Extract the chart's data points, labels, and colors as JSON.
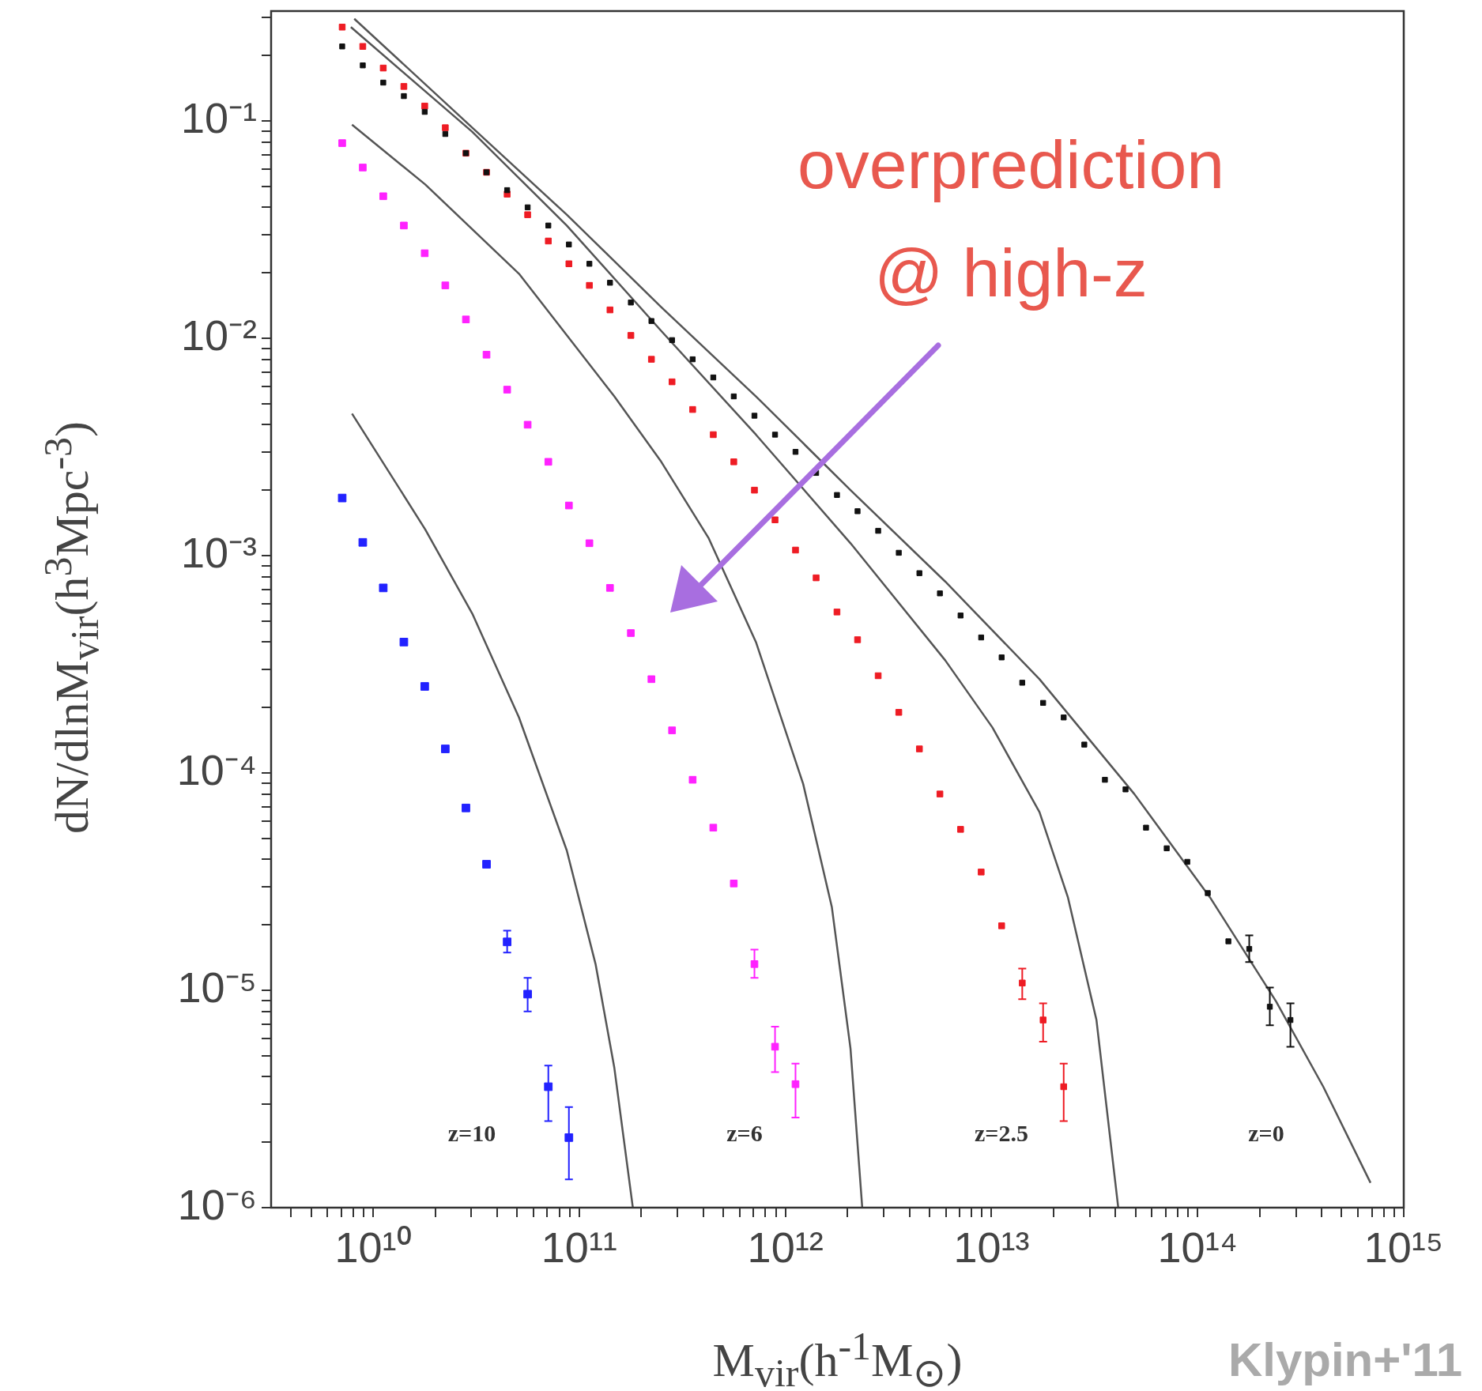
{
  "chart_data": {
    "type": "scatter",
    "xlabel": "M$_{vir}$(h$^{-1}$M$_{⊙}$)",
    "ylabel": "dN/dlnM$_{vir}$(h$^{3}$Mpc$^{-3}$)",
    "log": "xy",
    "marker": "square",
    "legend": false,
    "xlim": [
      3200000000.0,
      1000000000000000.0
    ],
    "ylim": [
      1e-06,
      0.32
    ],
    "xticks": [
      {
        "value": 4000000000.0,
        "label": null
      },
      {
        "value": 5000000000.0,
        "label": null
      },
      {
        "value": 6000000000.0,
        "label": null
      },
      {
        "value": 7000000000.0,
        "label": null
      },
      {
        "value": 8000000000.0,
        "label": null
      },
      {
        "value": 9000000000.0,
        "label": null
      },
      {
        "value": 10000000000.0,
        "label": "10¹⁰"
      },
      {
        "value": 20000000000.0,
        "label": null
      },
      {
        "value": 30000000000.0,
        "label": null
      },
      {
        "value": 40000000000.0,
        "label": null
      },
      {
        "value": 50000000000.0,
        "label": null
      },
      {
        "value": 60000000000.0,
        "label": null
      },
      {
        "value": 70000000000.0,
        "label": null
      },
      {
        "value": 80000000000.0,
        "label": null
      },
      {
        "value": 90000000000.0,
        "label": null
      },
      {
        "value": 100000000000.0,
        "label": "10¹¹"
      },
      {
        "value": 200000000000.0,
        "label": null
      },
      {
        "value": 300000000000.0,
        "label": null
      },
      {
        "value": 400000000000.0,
        "label": null
      },
      {
        "value": 500000000000.0,
        "label": null
      },
      {
        "value": 600000000000.0,
        "label": null
      },
      {
        "value": 700000000000.0,
        "label": null
      },
      {
        "value": 800000000000.0,
        "label": null
      },
      {
        "value": 900000000000.0,
        "label": null
      },
      {
        "value": 1000000000000.0,
        "label": "10¹²"
      },
      {
        "value": 2000000000000.0,
        "label": null
      },
      {
        "value": 3000000000000.0,
        "label": null
      },
      {
        "value": 4000000000000.0,
        "label": null
      },
      {
        "value": 5000000000000.0,
        "label": null
      },
      {
        "value": 6000000000000.0,
        "label": null
      },
      {
        "value": 7000000000000.0,
        "label": null
      },
      {
        "value": 8000000000000.0,
        "label": null
      },
      {
        "value": 9000000000000.0,
        "label": null
      },
      {
        "value": 10000000000000.0,
        "label": "10¹³"
      },
      {
        "value": 20000000000000.0,
        "label": null
      },
      {
        "value": 30000000000000.0,
        "label": null
      },
      {
        "value": 40000000000000.0,
        "label": null
      },
      {
        "value": 50000000000000.0,
        "label": null
      },
      {
        "value": 60000000000000.0,
        "label": null
      },
      {
        "value": 70000000000000.0,
        "label": null
      },
      {
        "value": 80000000000000.0,
        "label": null
      },
      {
        "value": 90000000000000.0,
        "label": null
      },
      {
        "value": 100000000000000.0,
        "label": "10¹⁴"
      },
      {
        "value": 200000000000000.0,
        "label": null
      },
      {
        "value": 300000000000000.0,
        "label": null
      },
      {
        "value": 400000000000000.0,
        "label": null
      },
      {
        "value": 500000000000000.0,
        "label": null
      },
      {
        "value": 600000000000000.0,
        "label": null
      },
      {
        "value": 700000000000000.0,
        "label": null
      },
      {
        "value": 800000000000000.0,
        "label": null
      },
      {
        "value": 900000000000000.0,
        "label": null
      },
      {
        "value": 1000000000000000.0,
        "label": "10¹⁵"
      }
    ],
    "yticks": [
      {
        "value": 1e-06,
        "label": "10⁻⁶"
      },
      {
        "value": 2e-06,
        "label": null
      },
      {
        "value": 3e-06,
        "label": null
      },
      {
        "value": 4e-06,
        "label": null
      },
      {
        "value": 5e-06,
        "label": null
      },
      {
        "value": 6e-06,
        "label": null
      },
      {
        "value": 7e-06,
        "label": null
      },
      {
        "value": 8e-06,
        "label": null
      },
      {
        "value": 9e-06,
        "label": null
      },
      {
        "value": 1e-05,
        "label": "10⁻⁵"
      },
      {
        "value": 2e-05,
        "label": null
      },
      {
        "value": 3e-05,
        "label": null
      },
      {
        "value": 4e-05,
        "label": null
      },
      {
        "value": 5e-05,
        "label": null
      },
      {
        "value": 6e-05,
        "label": null
      },
      {
        "value": 7e-05,
        "label": null
      },
      {
        "value": 8e-05,
        "label": null
      },
      {
        "value": 9e-05,
        "label": null
      },
      {
        "value": 0.0001,
        "label": "10⁻⁴"
      },
      {
        "value": 0.0002,
        "label": null
      },
      {
        "value": 0.0003,
        "label": null
      },
      {
        "value": 0.0004,
        "label": null
      },
      {
        "value": 0.0005,
        "label": null
      },
      {
        "value": 0.0006,
        "label": null
      },
      {
        "value": 0.0007,
        "label": null
      },
      {
        "value": 0.0008,
        "label": null
      },
      {
        "value": 0.0009,
        "label": null
      },
      {
        "value": 0.001,
        "label": "10⁻³"
      },
      {
        "value": 0.002,
        "label": null
      },
      {
        "value": 0.003,
        "label": null
      },
      {
        "value": 0.004,
        "label": null
      },
      {
        "value": 0.005,
        "label": null
      },
      {
        "value": 0.006,
        "label": null
      },
      {
        "value": 0.007,
        "label": null
      },
      {
        "value": 0.008,
        "label": null
      },
      {
        "value": 0.009,
        "label": null
      },
      {
        "value": 0.01,
        "label": "10⁻²"
      },
      {
        "value": 0.02,
        "label": null
      },
      {
        "value": 0.03,
        "label": null
      },
      {
        "value": 0.04,
        "label": null
      },
      {
        "value": 0.05,
        "label": null
      },
      {
        "value": 0.06,
        "label": null
      },
      {
        "value": 0.07,
        "label": null
      },
      {
        "value": 0.08,
        "label": null
      },
      {
        "value": 0.09,
        "label": null
      },
      {
        "value": 0.1,
        "label": "10⁻¹"
      },
      {
        "value": 0.2,
        "label": null
      },
      {
        "value": 0.3,
        "label": null
      }
    ],
    "series": [
      {
        "color": "#111111",
        "x": [
          7080000000.0,
          8910000000.0,
          11200000000.0,
          14100000000.0,
          17800000000.0,
          22400000000.0,
          28200000000.0,
          35500000000.0,
          44700000000.0,
          56200000000.0,
          70800000000.0,
          89100000000.0,
          112000000000.0,
          141000000000.0,
          178000000000.0,
          224000000000.0,
          282000000000.0,
          355000000000.0,
          447000000000.0,
          562000000000.0,
          708000000000.0,
          891000000000.0,
          1120000000000.0,
          1410000000000.0,
          1780000000000.0,
          2240000000000.0,
          2820000000000.0,
          3550000000000.0,
          4470000000000.0,
          5620000000000.0,
          7080000000000.0,
          8910000000000.0,
          11200000000000.0,
          14100000000000.0,
          17800000000000.0,
          22400000000000.0,
          28200000000000.0,
          35500000000000.0,
          44700000000000.0,
          56200000000000.0,
          70800000000000.0,
          89100000000000.0,
          112000000000000.0,
          141000000000000.0,
          178000000000000.0,
          224000000000000.0,
          282000000000000.0
        ],
        "values": [
          0.22,
          0.18,
          0.15,
          0.13,
          0.11,
          0.087,
          0.071,
          0.058,
          0.048,
          0.04,
          0.033,
          0.027,
          0.022,
          0.018,
          0.0146,
          0.012,
          0.0098,
          0.008,
          0.0066,
          0.0054,
          0.0044,
          0.0036,
          0.003,
          0.0024,
          0.0019,
          0.0016,
          0.0013,
          0.00103,
          0.00083,
          0.00067,
          0.00053,
          0.00042,
          0.00034,
          0.00026,
          0.00021,
          0.00018,
          0.000135,
          9.3e-05,
          8.4e-05,
          5.6e-05,
          4.5e-05,
          3.9e-05,
          2.8e-05,
          1.68e-05,
          1.55e-05,
          8.4e-06,
          7.3e-06
        ],
        "errors": [
          null,
          null,
          null,
          null,
          null,
          null,
          null,
          null,
          null,
          null,
          null,
          null,
          null,
          null,
          null,
          null,
          null,
          null,
          null,
          null,
          null,
          null,
          null,
          null,
          null,
          null,
          null,
          null,
          null,
          null,
          null,
          null,
          null,
          null,
          null,
          null,
          null,
          null,
          null,
          null,
          null,
          null,
          null,
          null,
          [
            1.35e-05,
            1.79e-05
          ],
          [
            6.9e-06,
            1.03e-05
          ],
          [
            5.5e-06,
            8.7e-06
          ]
        ]
      },
      {
        "color": "#ee1c24",
        "x": [
          7080000000.0,
          8910000000.0,
          11200000000.0,
          14100000000.0,
          17800000000.0,
          22400000000.0,
          28200000000.0,
          35500000000.0,
          44700000000.0,
          56200000000.0,
          70800000000.0,
          89100000000.0,
          112000000000.0,
          141000000000.0,
          178000000000.0,
          224000000000.0,
          282000000000.0,
          355000000000.0,
          447000000000.0,
          562000000000.0,
          708000000000.0,
          891000000000.0,
          1120000000000.0,
          1410000000000.0,
          1780000000000.0,
          2240000000000.0,
          2820000000000.0,
          3550000000000.0,
          4470000000000.0,
          5620000000000.0,
          7080000000000.0,
          8910000000000.0,
          11200000000000.0,
          14100000000000.0,
          17800000000000.0,
          22400000000000.0
        ],
        "values": [
          0.27,
          0.22,
          0.175,
          0.144,
          0.117,
          0.093,
          0.071,
          0.058,
          0.046,
          0.037,
          0.028,
          0.022,
          0.0175,
          0.0135,
          0.0103,
          0.008,
          0.0063,
          0.0047,
          0.0036,
          0.0027,
          0.002,
          0.00146,
          0.00106,
          0.00079,
          0.00055,
          0.00041,
          0.00028,
          0.00019,
          0.000129,
          8e-05,
          5.5e-05,
          3.5e-05,
          1.98e-05,
          1.08e-05,
          7.3e-06,
          3.6e-06
        ],
        "errors": [
          null,
          null,
          null,
          null,
          null,
          null,
          null,
          null,
          null,
          null,
          null,
          null,
          null,
          null,
          null,
          null,
          null,
          null,
          null,
          null,
          null,
          null,
          null,
          null,
          null,
          null,
          null,
          null,
          null,
          null,
          null,
          null,
          null,
          [
            9.1e-06,
            1.26e-05
          ],
          [
            5.8e-06,
            8.7e-06
          ],
          [
            2.5e-06,
            4.6e-06
          ]
        ]
      },
      {
        "color": "#ff22ff",
        "x": [
          7080000000.0,
          8910000000.0,
          11200000000.0,
          14100000000.0,
          17800000000.0,
          22400000000.0,
          28200000000.0,
          35500000000.0,
          44700000000.0,
          56200000000.0,
          70800000000.0,
          89100000000.0,
          112000000000.0,
          141000000000.0,
          178000000000.0,
          224000000000.0,
          282000000000.0,
          355000000000.0,
          447000000000.0,
          562000000000.0,
          708000000000.0,
          891000000000.0,
          1120000000000.0
        ],
        "values": [
          0.079,
          0.061,
          0.045,
          0.033,
          0.0246,
          0.0175,
          0.0122,
          0.0084,
          0.0058,
          0.004,
          0.0027,
          0.0017,
          0.00114,
          0.00071,
          0.00044,
          0.00027,
          0.000157,
          9.3e-05,
          5.6e-05,
          3.1e-05,
          1.32e-05,
          5.5e-06,
          3.7e-06
        ],
        "errors": [
          null,
          null,
          null,
          null,
          null,
          null,
          null,
          null,
          null,
          null,
          null,
          null,
          null,
          null,
          null,
          null,
          null,
          null,
          null,
          null,
          [
            1.14e-05,
            1.54e-05
          ],
          [
            4.2e-06,
            6.8e-06
          ],
          [
            2.6e-06,
            4.6e-06
          ]
        ]
      },
      {
        "color": "#2222ff",
        "x": [
          7080000000.0,
          8910000000.0,
          11200000000.0,
          14100000000.0,
          17800000000.0,
          22400000000.0,
          28200000000.0,
          35500000000.0,
          44700000000.0,
          56200000000.0,
          70800000000.0,
          89100000000.0
        ],
        "values": [
          0.00184,
          0.00115,
          0.00071,
          0.0004,
          0.00025,
          0.000129,
          6.9e-05,
          3.8e-05,
          1.67e-05,
          9.6e-06,
          3.6e-06,
          2.1e-06
        ],
        "errors": [
          null,
          null,
          null,
          null,
          null,
          null,
          null,
          null,
          [
            1.49e-05,
            1.88e-05
          ],
          [
            8e-06,
            1.14e-05
          ],
          [
            2.5e-06,
            4.5e-06
          ],
          [
            1.35e-06,
            2.9e-06
          ]
        ]
      },
      {
        "type": "line",
        "marker": "none",
        "color": "#555555",
        "x": [
          8100000000.0,
          30300000000.0,
          87000000000.0,
          250000000000.0,
          720000000000.0,
          2070000000000.0,
          5960000000000.0,
          17100000000000.0,
          49300000000000.0,
          115000000000000.0,
          240000000000000.0,
          407000000000000.0,
          690000000000000.0
        ],
        "values": [
          0.295,
          0.093,
          0.037,
          0.0139,
          0.0054,
          0.002,
          0.00076,
          0.00027,
          8e-05,
          2.67e-05,
          8.9e-06,
          3.6e-06,
          1.3e-06
        ]
      },
      {
        "type": "line",
        "marker": "none",
        "color": "#555555",
        "x": [
          7800000000.0,
          30300000000.0,
          87000000000.0,
          250000000000.0,
          720000000000.0,
          2070000000000.0,
          5960000000000.0,
          10100000000000.0,
          17100000000000.0,
          23500000000000.0,
          32300000000000.0,
          41200000000000.0
        ],
        "values": [
          0.27,
          0.089,
          0.033,
          0.0108,
          0.0036,
          0.00114,
          0.00033,
          0.000162,
          6.6e-05,
          2.67e-05,
          7.3e-06,
          1e-06
        ]
      },
      {
        "type": "line",
        "marker": "none",
        "color": "#555555",
        "x": [
          7900000000.0,
          17900000000.0,
          51000000000.0,
          148000000000.0,
          250000000000.0,
          425000000000.0,
          720000000000.0,
          1220000000000.0,
          1680000000000.0,
          2070000000000.0,
          2360000000000.0
        ],
        "values": [
          0.096,
          0.051,
          0.0198,
          0.0054,
          0.0027,
          0.0012,
          0.0004,
          8.9e-05,
          2.42e-05,
          5.4e-06,
          1e-06
        ]
      },
      {
        "type": "line",
        "marker": "none",
        "color": "#555555",
        "x": [
          7900000000.0,
          17900000000.0,
          30300000000.0,
          51000000000.0,
          87000000000.0,
          120000000000.0,
          148000000000.0,
          182000000000.0
        ],
        "values": [
          0.0045,
          0.00132,
          0.00054,
          0.00018,
          4.4e-05,
          1.32e-05,
          4.4e-06,
          1e-06
        ]
      }
    ],
    "annotations": [
      "z=10",
      "z=6",
      "z=2.5",
      "z=0",
      "overprediction @ high-z",
      "Klypin+'11"
    ]
  }
}
